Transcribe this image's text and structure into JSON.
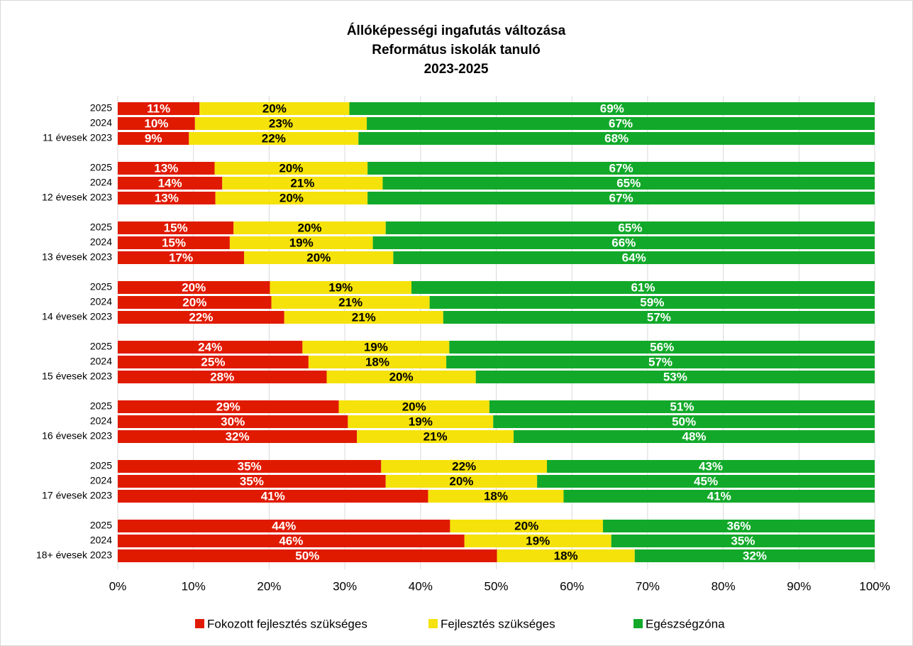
{
  "chart_data": {
    "type": "stacked_bar_horizontal",
    "title": [
      "Állóképességi ingafutás változása",
      "Református iskolák tanuló",
      "2023-2025"
    ],
    "categories": [
      "2025",
      "2024",
      "11 évesek 2023",
      "2025",
      "2024",
      "12 évesek 2023",
      "2025",
      "2024",
      "13 évesek 2023",
      "2025",
      "2024",
      "14 évesek 2023",
      "2025",
      "2024",
      "15 évesek 2023",
      "2025",
      "2024",
      "16 évesek 2023",
      "2025",
      "2024",
      "17 évesek 2023",
      "2025",
      "2024",
      "18+ évesek 2023"
    ],
    "series": [
      {
        "name": "Fokozott fejlesztés szükséges",
        "color": "#e01a00",
        "label_color": "#ffffff",
        "values": [
          10.8,
          10.2,
          9.4,
          12.8,
          13.8,
          12.9,
          15.3,
          14.8,
          16.7,
          20.1,
          20.3,
          22.0,
          24.4,
          25.2,
          27.6,
          29.2,
          30.4,
          31.6,
          34.8,
          35.4,
          41.0,
          43.9,
          45.8,
          50.1
        ],
        "value_labels": [
          "11%",
          "10%",
          "9%",
          "13%",
          "14%",
          "13%",
          "15%",
          "15%",
          "17%",
          "20%",
          "20%",
          "22%",
          "24%",
          "25%",
          "28%",
          "29%",
          "30%",
          "32%",
          "35%",
          "35%",
          "41%",
          "44%",
          "46%",
          "50%"
        ]
      },
      {
        "name": "Fejlesztés szükséges",
        "color": "#f5e20a",
        "label_color": "#000000",
        "values": [
          19.8,
          22.7,
          22.4,
          20.2,
          21.2,
          20.1,
          20.1,
          18.9,
          19.7,
          18.7,
          20.9,
          21.0,
          19.4,
          18.2,
          19.7,
          19.9,
          19.2,
          20.7,
          21.9,
          20.0,
          17.9,
          20.2,
          19.4,
          18.2
        ],
        "value_labels": [
          "20%",
          "23%",
          "22%",
          "20%",
          "21%",
          "20%",
          "20%",
          "19%",
          "20%",
          "19%",
          "21%",
          "21%",
          "19%",
          "18%",
          "20%",
          "20%",
          "19%",
          "21%",
          "22%",
          "20%",
          "18%",
          "20%",
          "19%",
          "18%"
        ]
      },
      {
        "name": "Egészségzóna",
        "color": "#12a92a",
        "label_color": "#ffffff",
        "values": [
          69.4,
          67.1,
          68.2,
          67.0,
          65.0,
          67.0,
          64.6,
          66.3,
          63.6,
          61.2,
          58.8,
          57.0,
          56.2,
          56.6,
          52.7,
          50.9,
          50.4,
          47.7,
          43.3,
          44.6,
          41.1,
          35.9,
          34.8,
          31.7
        ],
        "value_labels": [
          "69%",
          "67%",
          "68%",
          "67%",
          "65%",
          "67%",
          "65%",
          "66%",
          "64%",
          "61%",
          "59%",
          "57%",
          "56%",
          "57%",
          "53%",
          "51%",
          "50%",
          "48%",
          "43%",
          "45%",
          "41%",
          "36%",
          "35%",
          "32%"
        ]
      }
    ],
    "xlim": [
      0,
      100
    ],
    "xticks": [
      {
        "value": 0,
        "label": "0%"
      },
      {
        "value": 10,
        "label": "10%"
      },
      {
        "value": 20,
        "label": "20%"
      },
      {
        "value": 30,
        "label": "30%"
      },
      {
        "value": 40,
        "label": "40%"
      },
      {
        "value": 50,
        "label": "50%"
      },
      {
        "value": 60,
        "label": "60%"
      },
      {
        "value": 70,
        "label": "70%"
      },
      {
        "value": 80,
        "label": "80%"
      },
      {
        "value": 90,
        "label": "90%"
      },
      {
        "value": 100,
        "label": "100%"
      }
    ],
    "grid": true,
    "legend": "bottom"
  }
}
